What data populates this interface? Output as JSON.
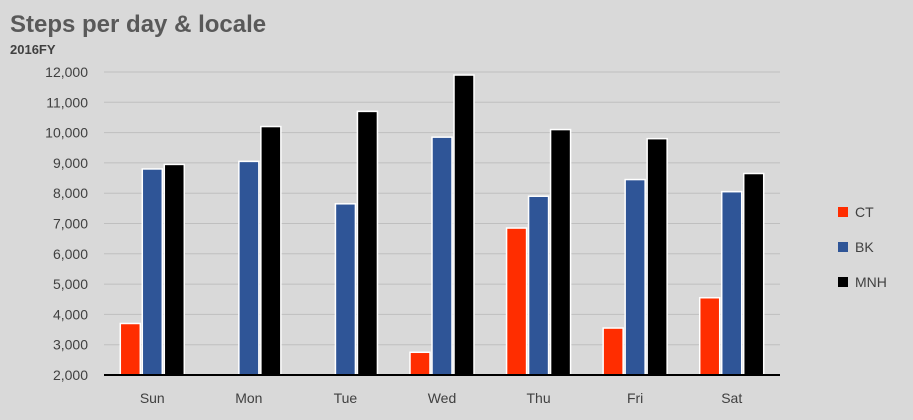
{
  "chart_data": {
    "type": "bar",
    "title": "Steps per day & locale",
    "subtitle": "2016FY",
    "categories": [
      "Sun",
      "Mon",
      "Tue",
      "Wed",
      "Thu",
      "Fri",
      "Sat"
    ],
    "series": [
      {
        "name": "CT",
        "color": "#ff2d00",
        "values": [
          3700,
          null,
          null,
          2750,
          6850,
          3550,
          4550
        ]
      },
      {
        "name": "BK",
        "color": "#2f5597",
        "values": [
          8800,
          9050,
          7650,
          9850,
          7900,
          8450,
          8050
        ]
      },
      {
        "name": "MNH",
        "color": "#000000",
        "values": [
          8950,
          10200,
          10700,
          11900,
          10100,
          9800,
          8650
        ]
      }
    ],
    "yticks": [
      "2,000",
      "3,000",
      "4,000",
      "5,000",
      "6,000",
      "7,000",
      "8,000",
      "9,000",
      "10,000",
      "11,000",
      "12,000"
    ],
    "ylim": [
      2000,
      12000
    ],
    "grid": true,
    "legend_position": "right"
  }
}
